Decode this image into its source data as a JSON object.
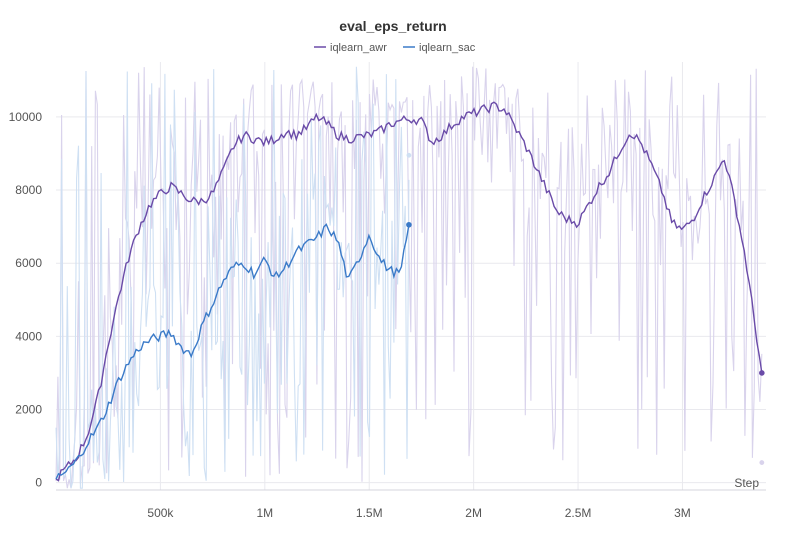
{
  "chart_data": {
    "type": "line",
    "title": "eval_eps_return",
    "xlabel": "Step",
    "ylabel": "",
    "xlim": [
      0,
      3400000
    ],
    "ylim": [
      -200,
      11500
    ],
    "x_ticks": [
      500000,
      1000000,
      1500000,
      2000000,
      2500000,
      3000000
    ],
    "x_tick_labels": [
      "500k",
      "1M",
      "1.5M",
      "2M",
      "2.5M",
      "3M"
    ],
    "y_ticks": [
      0,
      2000,
      4000,
      6000,
      8000,
      10000
    ],
    "y_tick_labels": [
      "0",
      "2000",
      "4000",
      "6000",
      "8000",
      "10000"
    ],
    "legend_position": "top-center",
    "series": [
      {
        "name": "iqlearn_awr",
        "color": "#6a4ba8",
        "raw_color": "#d9d3ec",
        "x": [
          0,
          50000,
          100000,
          150000,
          200000,
          250000,
          300000,
          350000,
          400000,
          450000,
          500000,
          550000,
          600000,
          650000,
          700000,
          750000,
          800000,
          850000,
          900000,
          950000,
          1000000,
          1050000,
          1100000,
          1150000,
          1200000,
          1250000,
          1300000,
          1350000,
          1400000,
          1450000,
          1500000,
          1550000,
          1600000,
          1650000,
          1700000,
          1750000,
          1800000,
          1850000,
          1900000,
          1950000,
          2000000,
          2050000,
          2100000,
          2150000,
          2200000,
          2250000,
          2300000,
          2350000,
          2400000,
          2450000,
          2500000,
          2550000,
          2600000,
          2650000,
          2700000,
          2750000,
          2800000,
          2850000,
          2900000,
          2950000,
          3000000,
          3050000,
          3100000,
          3150000,
          3200000,
          3250000,
          3300000,
          3350000,
          3380000
        ],
        "values": [
          100,
          400,
          700,
          1300,
          2300,
          3800,
          5100,
          6200,
          7000,
          7600,
          7900,
          8100,
          7900,
          7700,
          7700,
          7900,
          8500,
          9200,
          9500,
          9400,
          9300,
          9400,
          9600,
          9500,
          9700,
          10000,
          9800,
          9500,
          9400,
          9450,
          9500,
          9600,
          9800,
          9900,
          9950,
          9900,
          9300,
          9500,
          9800,
          10000,
          10100,
          10200,
          10300,
          10200,
          9700,
          9200,
          8600,
          8000,
          7400,
          7200,
          7100,
          7600,
          8100,
          8500,
          9100,
          9600,
          9300,
          8700,
          8000,
          7100,
          6900,
          7200,
          7800,
          8300,
          8900,
          7700,
          6200,
          4200,
          3000
        ]
      },
      {
        "name": "iqlearn_sac",
        "color": "#3a7ac8",
        "raw_color": "#cfe0f3",
        "x": [
          0,
          50000,
          100000,
          150000,
          200000,
          250000,
          300000,
          350000,
          400000,
          450000,
          500000,
          550000,
          600000,
          650000,
          700000,
          750000,
          800000,
          850000,
          900000,
          950000,
          1000000,
          1050000,
          1100000,
          1150000,
          1200000,
          1250000,
          1300000,
          1350000,
          1400000,
          1450000,
          1500000,
          1550000,
          1600000,
          1650000,
          1690000
        ],
        "values": [
          100,
          300,
          600,
          1100,
          1500,
          2100,
          2800,
          3300,
          3700,
          3900,
          4000,
          4100,
          3700,
          3500,
          4300,
          4900,
          5500,
          5900,
          6000,
          5700,
          6100,
          5600,
          5900,
          6300,
          6500,
          6700,
          7000,
          6600,
          5500,
          6100,
          6800,
          6100,
          5800,
          5700,
          7050
        ]
      }
    ]
  }
}
